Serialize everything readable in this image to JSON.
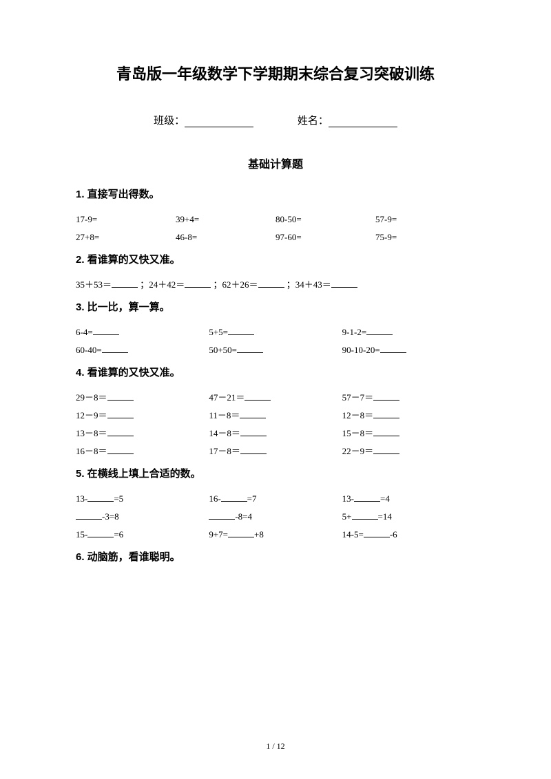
{
  "title": "青岛版一年级数学下学期期末综合复习突破训练",
  "class_label": "班级：",
  "name_label": "姓名：",
  "subtitle": "基础计算题",
  "sections": {
    "s1": {
      "title": "1. 直接写出得数。",
      "row1": [
        "17-9=",
        "39+4=",
        "80-50=",
        "57-9="
      ],
      "row2": [
        "27+8=",
        "46-8=",
        "97-60=",
        "75-9="
      ]
    },
    "s2": {
      "title": "2. 看谁算的又快又准。",
      "p1": "35＋53＝",
      "p2": "；24＋42＝",
      "p3": "；62＋26＝",
      "p4": "；34＋43＝"
    },
    "s3": {
      "title": "3. 比一比，算一算。",
      "row1": [
        "6-4=",
        "5+5=",
        "9-1-2="
      ],
      "row2": [
        "60-40=",
        "50+50=",
        "90-10-20="
      ]
    },
    "s4": {
      "title": "4. 看谁算的又快又准。",
      "row1": [
        "29－8＝",
        "47－21＝",
        "57－7＝"
      ],
      "row2": [
        "12－9＝",
        "11－8＝",
        "12－8＝"
      ],
      "row3": [
        "13－8＝",
        "14－8＝",
        "15－8＝"
      ],
      "row4": [
        "16－8＝",
        "17－8＝",
        "22－9＝"
      ]
    },
    "s5": {
      "title": "5. 在横线上填上合适的数。",
      "r1c1a": "13-",
      "r1c1b": "=5",
      "r1c2a": "16-",
      "r1c2b": "=7",
      "r1c3a": "13-",
      "r1c3b": "=4",
      "r2c1b": "-3=8",
      "r2c2b": "-8=4",
      "r2c3a": "5+",
      "r2c3b": "=14",
      "r3c1a": "15-",
      "r3c1b": "=6",
      "r3c2a": "9+7=",
      "r3c2b": "+8",
      "r3c3a": "14-5=",
      "r3c3b": "-6"
    },
    "s6": {
      "title": "6. 动脑筋，看谁聪明。"
    }
  },
  "footer": "1 / 12"
}
